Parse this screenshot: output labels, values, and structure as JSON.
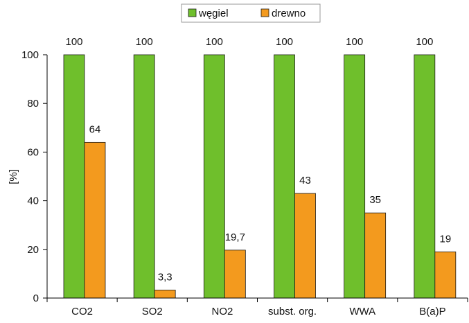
{
  "chart_data": {
    "type": "bar",
    "categories": [
      "CO2",
      "SO2",
      "NO2",
      "subst. org.",
      "WWA",
      "B(a)P"
    ],
    "series": [
      {
        "name": "węgiel",
        "values": [
          100,
          100,
          100,
          100,
          100,
          100
        ],
        "labels": [
          "100",
          "100",
          "100",
          "100",
          "100",
          "100"
        ],
        "color": "#6fbf2c"
      },
      {
        "name": "drewno",
        "values": [
          64,
          3.3,
          19.7,
          43,
          35,
          19
        ],
        "labels": [
          "64",
          "3,3",
          "19,7",
          "43",
          "35",
          "19"
        ],
        "color": "#f39a1e"
      }
    ],
    "ylabel": "[%]",
    "ylim": [
      0,
      100
    ],
    "yticks": [
      "0",
      "20",
      "40",
      "60",
      "80",
      "100"
    ],
    "ytick_values": [
      0,
      20,
      40,
      60,
      80,
      100
    ],
    "grid": false,
    "legend": "top-center"
  }
}
